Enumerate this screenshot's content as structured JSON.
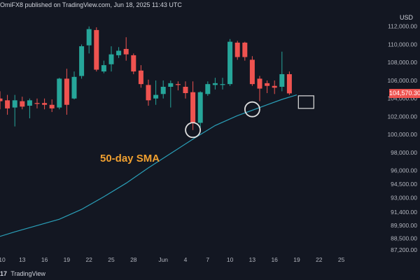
{
  "header": {
    "author_suffix": "OmiFX8",
    "published_text": "published on TradingView.com, Jun 18, 2025 11:43 UTC"
  },
  "currency": "USD",
  "brand": {
    "logo": "17",
    "name": "TradingView"
  },
  "colors": {
    "background": "#131722",
    "up": "#26a69a",
    "down": "#ef5350",
    "sma": "#2a9fb8",
    "annotation": "#f0a030",
    "marker": "#e0e0e0"
  },
  "chart_data": {
    "type": "candlestick",
    "ylim": [
      86500,
      114000
    ],
    "y_ticks": [
      {
        "value": 112000,
        "label": "112,000.00"
      },
      {
        "value": 110000,
        "label": "110,000.00"
      },
      {
        "value": 108000,
        "label": "108,000.00"
      },
      {
        "value": 106000,
        "label": "106,000.00"
      },
      {
        "value": 104000,
        "label": "104,000.00"
      },
      {
        "value": 102000,
        "label": "102,000.00"
      },
      {
        "value": 100000,
        "label": "100,000.00"
      },
      {
        "value": 98000,
        "label": "98,000.00"
      },
      {
        "value": 96000,
        "label": "96,000.00"
      },
      {
        "value": 94500,
        "label": "94,500.00"
      },
      {
        "value": 93000,
        "label": "93,000.00"
      },
      {
        "value": 91400,
        "label": "91,400.00"
      },
      {
        "value": 89900,
        "label": "89,900.00"
      },
      {
        "value": 88500,
        "label": "88,500.00"
      },
      {
        "value": 87200,
        "label": "87,200.00"
      }
    ],
    "x_ticks": [
      {
        "index": 0,
        "label": "10"
      },
      {
        "index": 3,
        "label": "13"
      },
      {
        "index": 6,
        "label": "16"
      },
      {
        "index": 9,
        "label": "19"
      },
      {
        "index": 12,
        "label": "22"
      },
      {
        "index": 15,
        "label": "25"
      },
      {
        "index": 18,
        "label": "28"
      },
      {
        "index": 22,
        "label": "Jun"
      },
      {
        "index": 25,
        "label": "4"
      },
      {
        "index": 28,
        "label": "7"
      },
      {
        "index": 31,
        "label": "10"
      },
      {
        "index": 34,
        "label": "13"
      },
      {
        "index": 37,
        "label": "16"
      },
      {
        "index": 40,
        "label": "19"
      },
      {
        "index": 43,
        "label": "22"
      },
      {
        "index": 46,
        "label": "25"
      }
    ],
    "candles": [
      {
        "o": 104000,
        "h": 104800,
        "l": 102800,
        "c": 103700
      },
      {
        "o": 103800,
        "h": 104400,
        "l": 102200,
        "c": 102900
      },
      {
        "o": 103000,
        "h": 104400,
        "l": 100900,
        "c": 103800
      },
      {
        "o": 103700,
        "h": 104200,
        "l": 102800,
        "c": 103100
      },
      {
        "o": 103200,
        "h": 104000,
        "l": 101800,
        "c": 103800
      },
      {
        "o": 103500,
        "h": 104000,
        "l": 102900,
        "c": 103400
      },
      {
        "o": 103500,
        "h": 104000,
        "l": 102800,
        "c": 103300
      },
      {
        "o": 103300,
        "h": 103900,
        "l": 102500,
        "c": 102900
      },
      {
        "o": 103000,
        "h": 106300,
        "l": 102800,
        "c": 106200
      },
      {
        "o": 106200,
        "h": 107300,
        "l": 102200,
        "c": 103300
      },
      {
        "o": 104000,
        "h": 107000,
        "l": 103900,
        "c": 106400
      },
      {
        "o": 106500,
        "h": 110000,
        "l": 106200,
        "c": 109800
      },
      {
        "o": 109900,
        "h": 112000,
        "l": 109000,
        "c": 111700
      },
      {
        "o": 111600,
        "h": 111900,
        "l": 107000,
        "c": 107200
      },
      {
        "o": 107000,
        "h": 108200,
        "l": 106800,
        "c": 107700
      },
      {
        "o": 107800,
        "h": 109800,
        "l": 107000,
        "c": 108900
      },
      {
        "o": 108800,
        "h": 109700,
        "l": 108500,
        "c": 109300
      },
      {
        "o": 109500,
        "h": 110800,
        "l": 108200,
        "c": 108900
      },
      {
        "o": 108800,
        "h": 109000,
        "l": 106700,
        "c": 107000
      },
      {
        "o": 107100,
        "h": 107700,
        "l": 105200,
        "c": 105600
      },
      {
        "o": 105500,
        "h": 106100,
        "l": 103200,
        "c": 103800
      },
      {
        "o": 104000,
        "h": 106000,
        "l": 103300,
        "c": 104400
      },
      {
        "o": 104500,
        "h": 106000,
        "l": 104000,
        "c": 105300
      },
      {
        "o": 105300,
        "h": 106000,
        "l": 103000,
        "c": 105700
      },
      {
        "o": 105600,
        "h": 105900,
        "l": 104900,
        "c": 105500
      },
      {
        "o": 105300,
        "h": 105900,
        "l": 104000,
        "c": 104600
      },
      {
        "o": 104700,
        "h": 105900,
        "l": 100500,
        "c": 101300
      },
      {
        "o": 101300,
        "h": 104800,
        "l": 100800,
        "c": 104700
      },
      {
        "o": 104500,
        "h": 105900,
        "l": 104300,
        "c": 105600
      },
      {
        "o": 105500,
        "h": 106300,
        "l": 105000,
        "c": 105700
      },
      {
        "o": 105500,
        "h": 106300,
        "l": 105000,
        "c": 105600
      },
      {
        "o": 105600,
        "h": 110600,
        "l": 105400,
        "c": 110300
      },
      {
        "o": 110200,
        "h": 110400,
        "l": 108300,
        "c": 108600
      },
      {
        "o": 110200,
        "h": 110300,
        "l": 108200,
        "c": 108600
      },
      {
        "o": 108300,
        "h": 108700,
        "l": 105400,
        "c": 105600
      },
      {
        "o": 106200,
        "h": 106500,
        "l": 103700,
        "c": 105100
      },
      {
        "o": 105700,
        "h": 106000,
        "l": 104600,
        "c": 105400
      },
      {
        "o": 105400,
        "h": 106000,
        "l": 104500,
        "c": 105200
      },
      {
        "o": 105300,
        "h": 109200,
        "l": 104800,
        "c": 106700
      },
      {
        "o": 106700,
        "h": 107000,
        "l": 104400,
        "c": 104570
      }
    ],
    "sma": {
      "label": "50-day SMA",
      "points": [
        {
          "i": 0,
          "v": 88700
        },
        {
          "i": 2,
          "v": 89200
        },
        {
          "i": 5,
          "v": 89900
        },
        {
          "i": 8,
          "v": 90600
        },
        {
          "i": 11,
          "v": 91700
        },
        {
          "i": 14,
          "v": 93100
        },
        {
          "i": 17,
          "v": 94600
        },
        {
          "i": 20,
          "v": 96300
        },
        {
          "i": 23,
          "v": 97900
        },
        {
          "i": 26,
          "v": 99500
        },
        {
          "i": 29,
          "v": 101000
        },
        {
          "i": 32,
          "v": 102100
        },
        {
          "i": 34,
          "v": 102700
        },
        {
          "i": 36,
          "v": 103300
        },
        {
          "i": 38,
          "v": 103900
        },
        {
          "i": 40,
          "v": 104400
        }
      ]
    },
    "last_price": {
      "value": 104570.3,
      "label": "104,570.30"
    },
    "touch_markers": [
      {
        "i": 26,
        "v": 100500
      },
      {
        "i": 34,
        "v": 102800
      }
    ],
    "last_marker": {
      "i": 40.5,
      "v": 103600
    }
  }
}
